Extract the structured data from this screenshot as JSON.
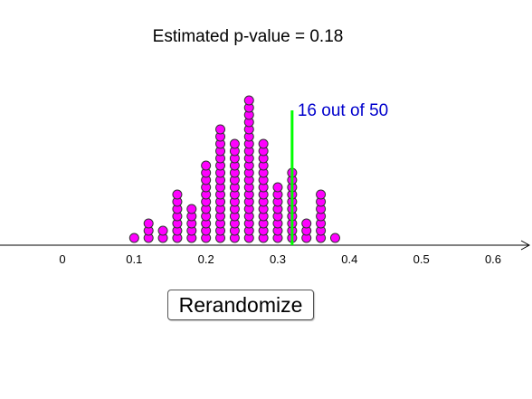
{
  "title": "Estimated p-value = 0.18",
  "button_label": "Rerandomize",
  "threshold_label": "16 out of 50",
  "colors": {
    "dot_fill": "#ff00ff",
    "dot_stroke": "#333333",
    "threshold_line": "#00ff00",
    "threshold_text": "#0000cc",
    "axis": "#000000"
  },
  "chart_data": {
    "type": "dotplot",
    "xlim": [
      0,
      0.6
    ],
    "x_ticks": [
      0,
      0.1,
      0.2,
      0.3,
      0.4,
      0.5,
      0.6
    ],
    "x_tick_labels": [
      "0",
      "0.1",
      "0.2",
      "0.3",
      "0.4",
      "0.5",
      "0.6"
    ],
    "threshold": 0.32,
    "points": [
      {
        "x": 0.1,
        "count": 1
      },
      {
        "x": 0.12,
        "count": 3
      },
      {
        "x": 0.14,
        "count": 2
      },
      {
        "x": 0.16,
        "count": 7
      },
      {
        "x": 0.18,
        "count": 5
      },
      {
        "x": 0.2,
        "count": 11
      },
      {
        "x": 0.22,
        "count": 16
      },
      {
        "x": 0.24,
        "count": 14
      },
      {
        "x": 0.26,
        "count": 20
      },
      {
        "x": 0.28,
        "count": 14
      },
      {
        "x": 0.3,
        "count": 8
      },
      {
        "x": 0.32,
        "count": 10
      },
      {
        "x": 0.34,
        "count": 3
      },
      {
        "x": 0.36,
        "count": 7
      },
      {
        "x": 0.38,
        "count": 1
      }
    ]
  }
}
